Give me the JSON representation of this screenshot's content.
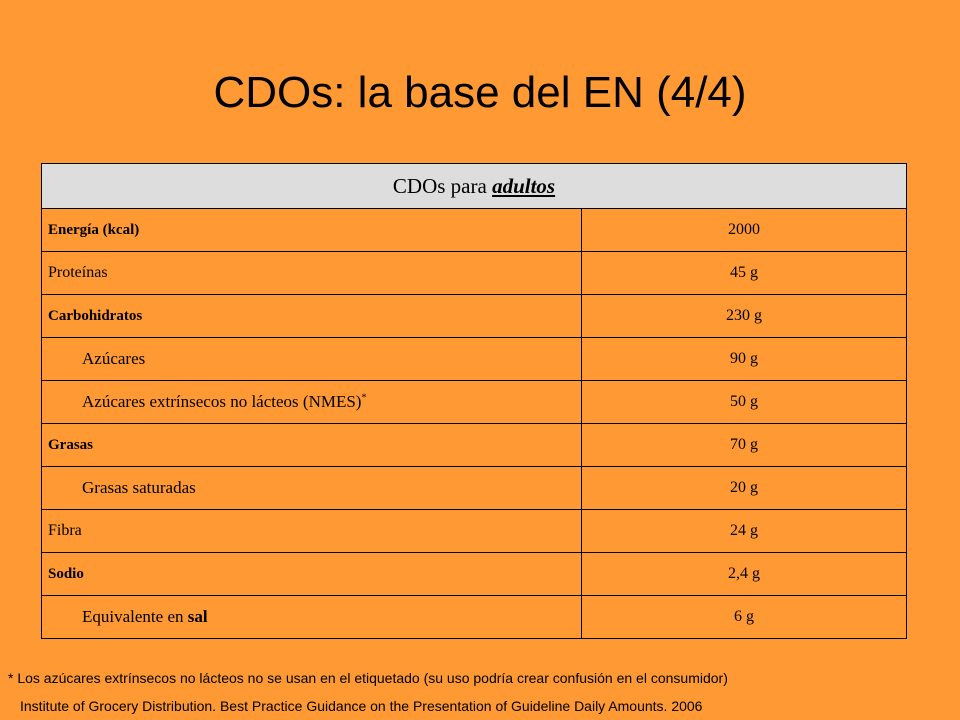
{
  "title": "CDOs: la base del EN (4/4)",
  "table": {
    "header_prefix": "CDOs para",
    "header_emphasis": "adultos",
    "rows": [
      {
        "label": "Energía (kcal)",
        "value": "2000"
      },
      {
        "label": "Proteínas",
        "value": "45 g"
      },
      {
        "label": "Carbohidratos",
        "value": "230 g"
      },
      {
        "label": "Azúcares",
        "value": "90 g"
      },
      {
        "label": "Azúcares extrínsecos no lácteos (NMES)",
        "label_mark": "*",
        "value": "50 g"
      },
      {
        "label": "Grasas",
        "value": "70 g"
      },
      {
        "label": "Grasas saturadas",
        "value": "20 g"
      },
      {
        "label": "Fibra",
        "value": "24 g"
      },
      {
        "label": "Sodio",
        "value": "2,4 g"
      },
      {
        "label_prefix": "Equivalente en",
        "label_emphasis": "sal",
        "value": "6 g"
      }
    ]
  },
  "footnote": "* Los azúcares extrínsecos no lácteos no se usan en el etiquetado (su uso podría crear confusión en el consumidor)",
  "source": "Institute of Grocery Distribution. Best Practice Guidance on the Presentation of Guideline Daily Amounts. 2006",
  "colors": {
    "background": "#FF9933",
    "header_bg": "#DDDDDD"
  }
}
